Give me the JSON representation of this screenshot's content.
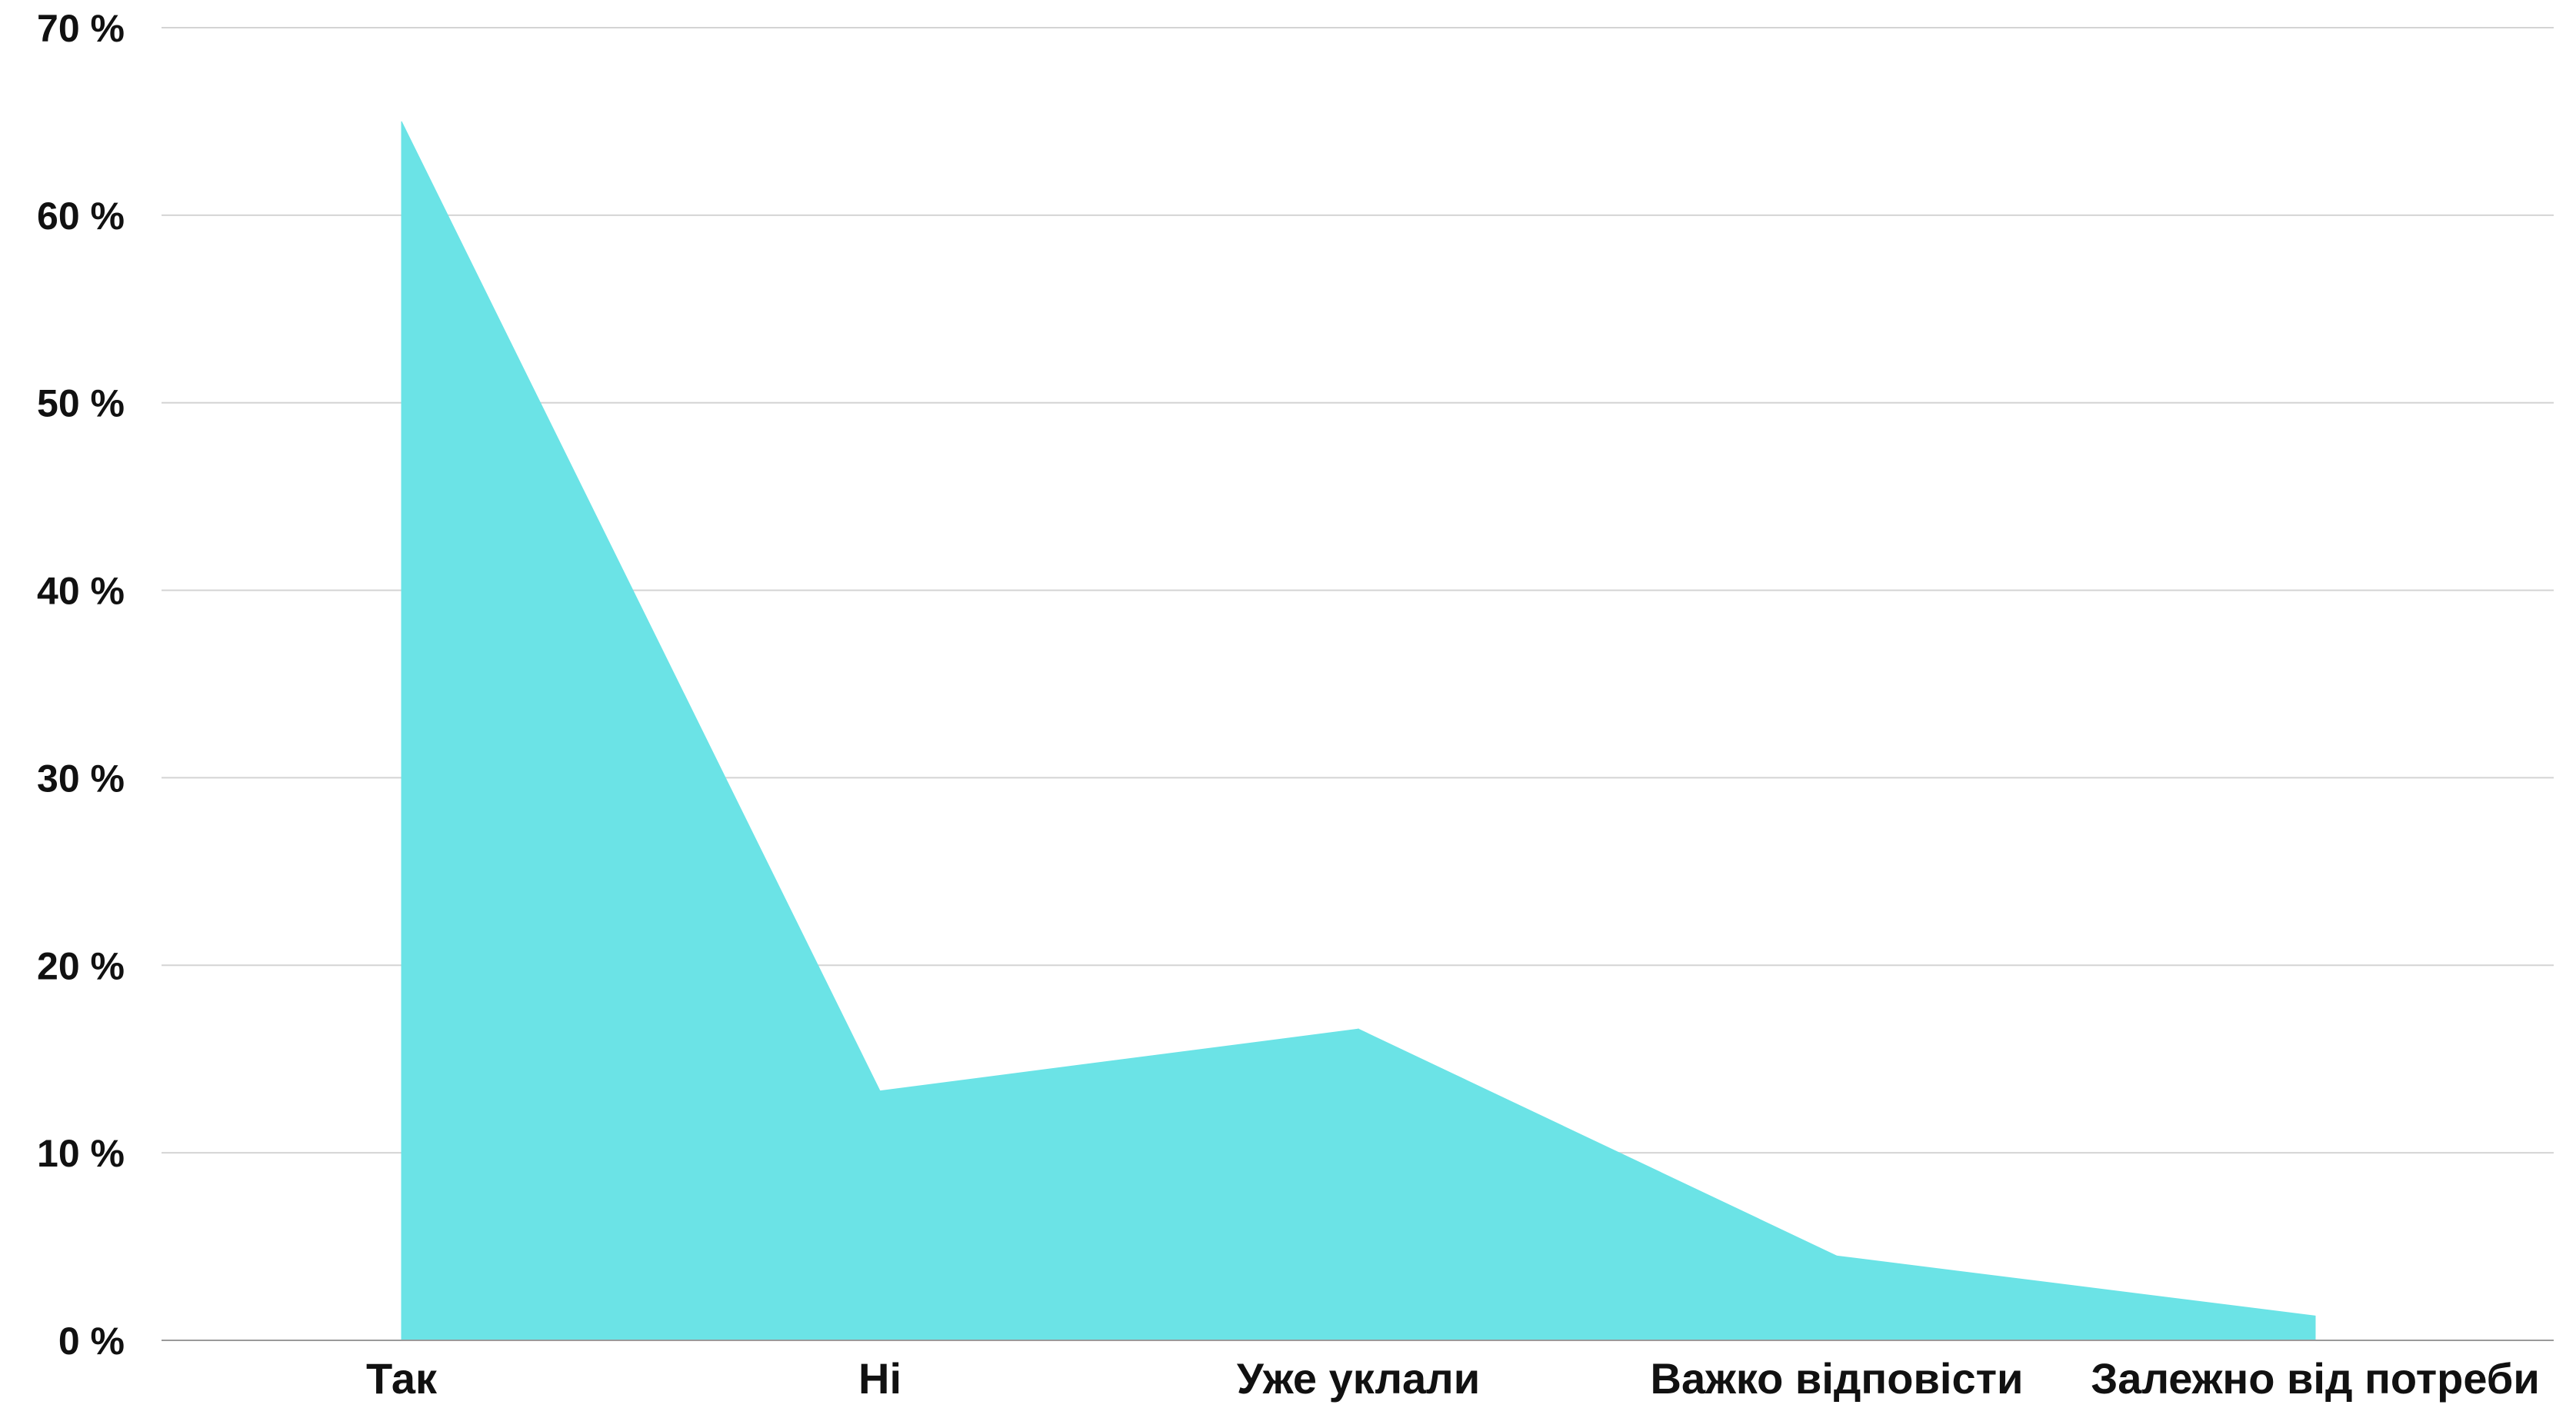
{
  "chart_data": {
    "type": "area",
    "categories": [
      "Так",
      "Ні",
      "Уже уклали",
      "Важко відповісти",
      "Залежно від потреби"
    ],
    "values": [
      65,
      13.3,
      16.6,
      4.5,
      1.3
    ],
    "ylim": [
      0,
      70
    ],
    "yticks": [
      0,
      10,
      20,
      30,
      40,
      50,
      60,
      70
    ],
    "ytick_labels": [
      "0 %",
      "10 %",
      "20 %",
      "30 %",
      "40 %",
      "50 %",
      "60 %",
      "70 %"
    ],
    "title": "",
    "xlabel": "",
    "ylabel": "",
    "grid": true,
    "legend": "none",
    "colors": {
      "fill": "#6BE3E6",
      "grid": "#d4d4d4",
      "axis": "#9a9a9a",
      "text": "#111111"
    }
  }
}
